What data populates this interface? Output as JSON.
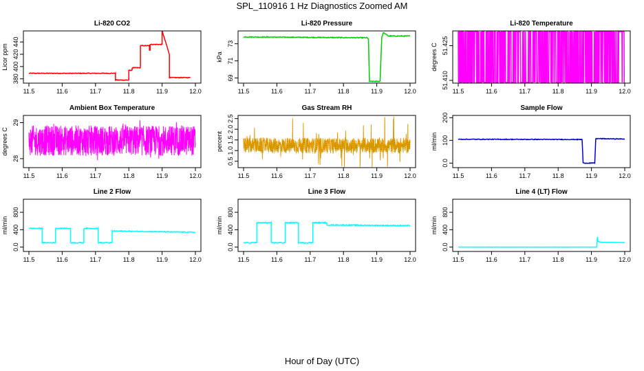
{
  "figure": {
    "title": "SPL_110916  1 Hz Diagnostics Zoomed AM",
    "xlabel": "Hour of Day (UTC)"
  },
  "chart_data": [
    {
      "id": "co2",
      "type": "line",
      "title": "Li-820 CO2",
      "ylabel": "Licor ppm",
      "color": "#ff0000",
      "xlim": [
        11.5,
        12.0
      ],
      "xticks": [
        11.5,
        11.6,
        11.7,
        11.8,
        11.9,
        12.0
      ],
      "ylim": [
        373,
        458
      ],
      "yticks": [
        380,
        400,
        420,
        440
      ],
      "noise": 0.6,
      "x": [
        11.5,
        11.76,
        11.76,
        11.8,
        11.8,
        11.81,
        11.81,
        11.835,
        11.835,
        11.862,
        11.862,
        11.864,
        11.864,
        11.9,
        11.9,
        11.922,
        11.922,
        11.985
      ],
      "y": [
        389,
        389,
        378,
        378,
        394,
        394,
        398,
        398,
        434,
        434,
        427,
        427,
        436,
        436,
        458,
        420,
        382,
        382
      ]
    },
    {
      "id": "pressure",
      "type": "line",
      "title": "Li-820 Pressure",
      "ylabel": "kPa",
      "color": "#00cc00",
      "xlim": [
        11.5,
        12.0
      ],
      "xticks": [
        11.5,
        11.6,
        11.7,
        11.8,
        11.9,
        12.0
      ],
      "ylim": [
        68.4,
        74.5
      ],
      "yticks": [
        69,
        71,
        73
      ],
      "noise": 0.05,
      "x": [
        11.5,
        11.87,
        11.875,
        11.878,
        11.91,
        11.915,
        11.92,
        11.935,
        12.0
      ],
      "y": [
        73.8,
        73.7,
        73.6,
        68.6,
        68.6,
        73.8,
        74.3,
        73.9,
        73.9
      ]
    },
    {
      "id": "licor-temp",
      "type": "line",
      "title": "Li-820 Temperature",
      "ylabel": "degrees C",
      "color": "#ff00ff",
      "xlim": [
        11.5,
        12.0
      ],
      "xticks": [
        11.5,
        11.6,
        11.7,
        11.8,
        11.9,
        12.0
      ],
      "ylim": [
        51.4088,
        51.4314
      ],
      "yticks": [
        51.41,
        51.425
      ],
      "mode": "binary",
      "levels": [
        51.4091,
        51.4311
      ],
      "switch_prob": 0.35
    },
    {
      "id": "box-temp",
      "type": "line",
      "title": "Ambient Box Temperature",
      "ylabel": "degrees C",
      "color": "#ff00ff",
      "xlim": [
        11.5,
        12.0
      ],
      "xticks": [
        11.5,
        11.6,
        11.7,
        11.8,
        11.9,
        12.0
      ],
      "ylim": [
        27.75,
        29.2
      ],
      "yticks": [
        28.0,
        29.0
      ],
      "mode": "jitter",
      "base": 28.5,
      "amp": 0.42,
      "spike": 0.62
    },
    {
      "id": "rh",
      "type": "line",
      "title": "Gas Stream RH",
      "ylabel": "percent",
      "color": "#ff9900",
      "color2": "#999900",
      "xlim": [
        11.5,
        12.0
      ],
      "xticks": [
        11.5,
        11.6,
        11.7,
        11.8,
        11.9,
        12.0
      ],
      "ylim": [
        0.2,
        2.65
      ],
      "yticks": [
        0.5,
        1.0,
        1.5,
        2.0,
        2.5
      ],
      "mode": "jitter",
      "base": 1.25,
      "amp": 0.35,
      "spike": 1.4
    },
    {
      "id": "sample-flow",
      "type": "line",
      "title": "Sample Flow",
      "ylabel": "ml/min",
      "color": "#0000cc",
      "xlim": [
        11.5,
        12.0
      ],
      "xticks": [
        11.5,
        11.6,
        11.7,
        11.8,
        11.9,
        12.0
      ],
      "ylim": [
        -20,
        210
      ],
      "yticks": [
        0,
        100,
        200
      ],
      "noise": 1.5,
      "x": [
        11.5,
        11.872,
        11.875,
        11.91,
        11.913,
        12.0
      ],
      "y": [
        105,
        104,
        0,
        0,
        108,
        106
      ]
    },
    {
      "id": "line2",
      "type": "line",
      "title": "Line 2 Flow",
      "ylabel": "ml/min",
      "color": "#00ffff",
      "xlim": [
        11.5,
        12.0
      ],
      "xticks": [
        11.5,
        11.6,
        11.7,
        11.8,
        11.9,
        12.0
      ],
      "ylim": [
        -100,
        1100
      ],
      "yticks": [
        0,
        400,
        800
      ],
      "noise": 10,
      "x": [
        11.5,
        11.54,
        11.54,
        11.58,
        11.58,
        11.625,
        11.625,
        11.665,
        11.665,
        11.708,
        11.708,
        11.75,
        11.75,
        12.0
      ],
      "y": [
        430,
        430,
        100,
        100,
        430,
        430,
        100,
        100,
        430,
        430,
        100,
        100,
        370,
        340
      ]
    },
    {
      "id": "line3",
      "type": "line",
      "title": "Line 3 Flow",
      "ylabel": "ml/min",
      "color": "#00ffff",
      "xlim": [
        11.5,
        12.0
      ],
      "xticks": [
        11.5,
        11.6,
        11.7,
        11.8,
        11.9,
        12.0
      ],
      "ylim": [
        -100,
        1100
      ],
      "yticks": [
        0,
        400,
        800
      ],
      "noise": 12,
      "x": [
        11.5,
        11.54,
        11.54,
        11.583,
        11.583,
        11.625,
        11.625,
        11.665,
        11.665,
        11.708,
        11.708,
        11.75,
        11.75,
        12.0
      ],
      "y": [
        100,
        100,
        560,
        560,
        100,
        100,
        560,
        560,
        100,
        100,
        560,
        560,
        510,
        490
      ]
    },
    {
      "id": "line4",
      "type": "line",
      "title": "Line 4 (LT) Flow",
      "ylabel": "ml/min",
      "color": "#00ffff",
      "xlim": [
        11.5,
        12.0
      ],
      "xticks": [
        11.5,
        11.6,
        11.7,
        11.8,
        11.9,
        12.0
      ],
      "ylim": [
        -100,
        1100
      ],
      "yticks": [
        0,
        400,
        800
      ],
      "noise": 2,
      "x": [
        11.5,
        11.916,
        11.918,
        11.92,
        11.93,
        12.0
      ],
      "y": [
        0,
        0,
        230,
        130,
        110,
        105
      ]
    }
  ]
}
